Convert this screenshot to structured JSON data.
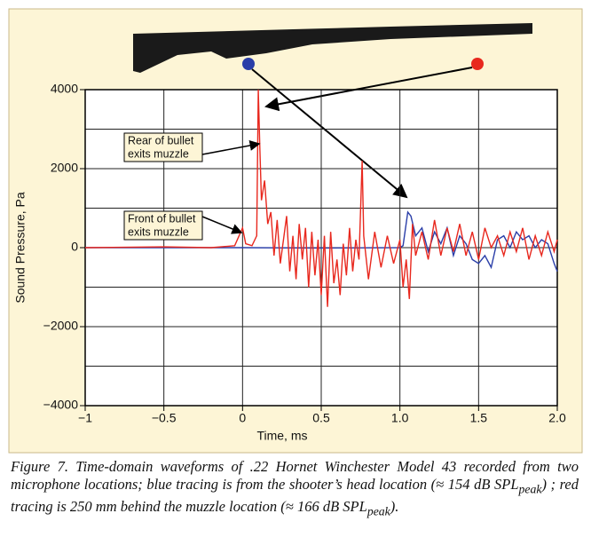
{
  "chart_data": {
    "type": "line",
    "xlabel": "Time, ms",
    "ylabel": "Sound Pressure, Pa",
    "xlim": [
      -1,
      2
    ],
    "ylim": [
      -4000,
      4000
    ],
    "xticks": [
      {
        "value": -1,
        "label": "−1"
      },
      {
        "value": -0.5,
        "label": "−0.5"
      },
      0,
      0.5,
      {
        "value": 1,
        "label": "1.0"
      },
      1.5,
      {
        "value": 2,
        "label": "2.0"
      }
    ],
    "yticks": [
      {
        "value": -4000,
        "label": "−4000"
      },
      {
        "value": -2000,
        "label": "−2000"
      },
      0,
      2000,
      4000
    ],
    "ygrid": [
      -3000,
      -1000,
      1000,
      3000
    ],
    "grid": true,
    "series": [
      {
        "name": "Rear of muzzle",
        "color": "#e8281e",
        "x": [
          -1,
          -0.5,
          -0.2,
          -0.05,
          0,
          0.02,
          0.06,
          0.09,
          0.1,
          0.11,
          0.12,
          0.14,
          0.16,
          0.18,
          0.2,
          0.22,
          0.24,
          0.26,
          0.28,
          0.3,
          0.32,
          0.34,
          0.36,
          0.38,
          0.4,
          0.42,
          0.44,
          0.46,
          0.48,
          0.5,
          0.52,
          0.54,
          0.56,
          0.58,
          0.6,
          0.62,
          0.64,
          0.66,
          0.68,
          0.7,
          0.72,
          0.74,
          0.76,
          0.77,
          0.8,
          0.84,
          0.88,
          0.92,
          0.96,
          1.0,
          1.02,
          1.04,
          1.06,
          1.08,
          1.1,
          1.14,
          1.18,
          1.22,
          1.26,
          1.3,
          1.34,
          1.38,
          1.42,
          1.46,
          1.5,
          1.54,
          1.58,
          1.62,
          1.66,
          1.7,
          1.74,
          1.78,
          1.82,
          1.86,
          1.9,
          1.94,
          1.98,
          2.0
        ],
        "values": [
          0,
          20,
          0,
          50,
          500,
          100,
          50,
          300,
          4000,
          2500,
          1200,
          1700,
          600,
          900,
          -200,
          700,
          -400,
          200,
          800,
          -600,
          300,
          -800,
          600,
          -300,
          500,
          -1000,
          400,
          -700,
          200,
          -1200,
          300,
          -1500,
          400,
          -900,
          -300,
          -1200,
          100,
          -700,
          500,
          -600,
          200,
          -300,
          2200,
          300,
          -800,
          400,
          -500,
          300,
          -400,
          200,
          -1000,
          -300,
          -1300,
          600,
          -200,
          400,
          -300,
          700,
          -200,
          500,
          -100,
          600,
          -200,
          400,
          -300,
          500,
          0,
          300,
          -200,
          400,
          -100,
          500,
          -300,
          300,
          -200,
          400,
          -100,
          200
        ]
      },
      {
        "name": "Shooter head",
        "color": "#2a3ea8",
        "x": [
          -1,
          0,
          0.5,
          1.0,
          1.02,
          1.05,
          1.07,
          1.1,
          1.14,
          1.18,
          1.22,
          1.26,
          1.3,
          1.34,
          1.38,
          1.42,
          1.46,
          1.5,
          1.54,
          1.58,
          1.62,
          1.66,
          1.7,
          1.74,
          1.78,
          1.82,
          1.86,
          1.9,
          1.94,
          1.98,
          2.0
        ],
        "values": [
          0,
          0,
          -10,
          0,
          50,
          900,
          800,
          300,
          500,
          -100,
          400,
          100,
          500,
          -200,
          300,
          100,
          -300,
          -400,
          -200,
          -500,
          200,
          300,
          0,
          400,
          200,
          300,
          0,
          200,
          100,
          -400,
          -600
        ]
      }
    ],
    "annotations": [
      {
        "lines": [
          "Rear of bullet",
          "exits muzzle"
        ]
      },
      {
        "lines": [
          "Front of bullet",
          "exits muzzle"
        ]
      }
    ]
  },
  "caption": {
    "part1": "Figure 7. Time-domain waveforms of .22 Hornet Winchester Model 43 recorded from two microphone locations; blue tracing is from the shooter’s head location (≈ 154 dB SPL",
    "sub1": "peak",
    "part2": ") ; red tracing is 250 mm behind the muzzle location (≈ 166 dB SPL",
    "sub2": "peak",
    "part3": ")."
  }
}
